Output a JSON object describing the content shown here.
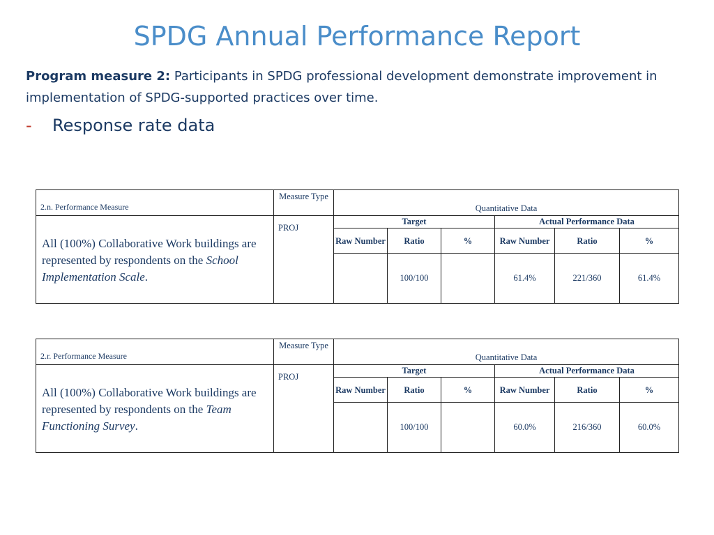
{
  "title": "SPDG Annual Performance Report",
  "program": {
    "label": "Program measure 2:",
    "text": " Participants in SPDG professional development demonstrate improvement in implementation of SPDG-supported practices over time."
  },
  "bullet": {
    "dash": "-",
    "text": "Response rate data"
  },
  "tables": [
    {
      "measure_label": "2.n.  Performance Measure",
      "measure_type_header": "Measure Type",
      "quantitative_header": "Quantitative Data",
      "target_header": "Target",
      "actual_header": "Actual Performance Data",
      "col_raw_number": "Raw Number",
      "col_ratio": "Ratio",
      "col_percent": "%",
      "description_prefix": "All (100%) Collaborative Work buildings are represented by respondents on the ",
      "description_italic": "School Implementation Scale",
      "description_suffix": ".",
      "measure_type": "PROJ",
      "target_raw": "",
      "target_ratio": "100/100",
      "target_percent": "",
      "actual_raw": "61.4%",
      "actual_ratio": "221/360",
      "actual_percent": "61.4%"
    },
    {
      "measure_label": "2.r.  Performance Measure",
      "measure_type_header": "Measure Type",
      "quantitative_header": "Quantitative Data",
      "target_header": "Target",
      "actual_header": "Actual Performance Data",
      "col_raw_number": "Raw Number",
      "col_ratio": "Ratio",
      "col_percent": "%",
      "description_prefix": "All (100%) Collaborative Work buildings are represented by respondents on the ",
      "description_italic": "Team Functioning Survey",
      "description_suffix": ".",
      "measure_type": "PROJ",
      "target_raw": "",
      "target_ratio": "100/100",
      "target_percent": "",
      "actual_raw": "60.0%",
      "actual_ratio": "216/360",
      "actual_percent": "60.0%"
    }
  ]
}
